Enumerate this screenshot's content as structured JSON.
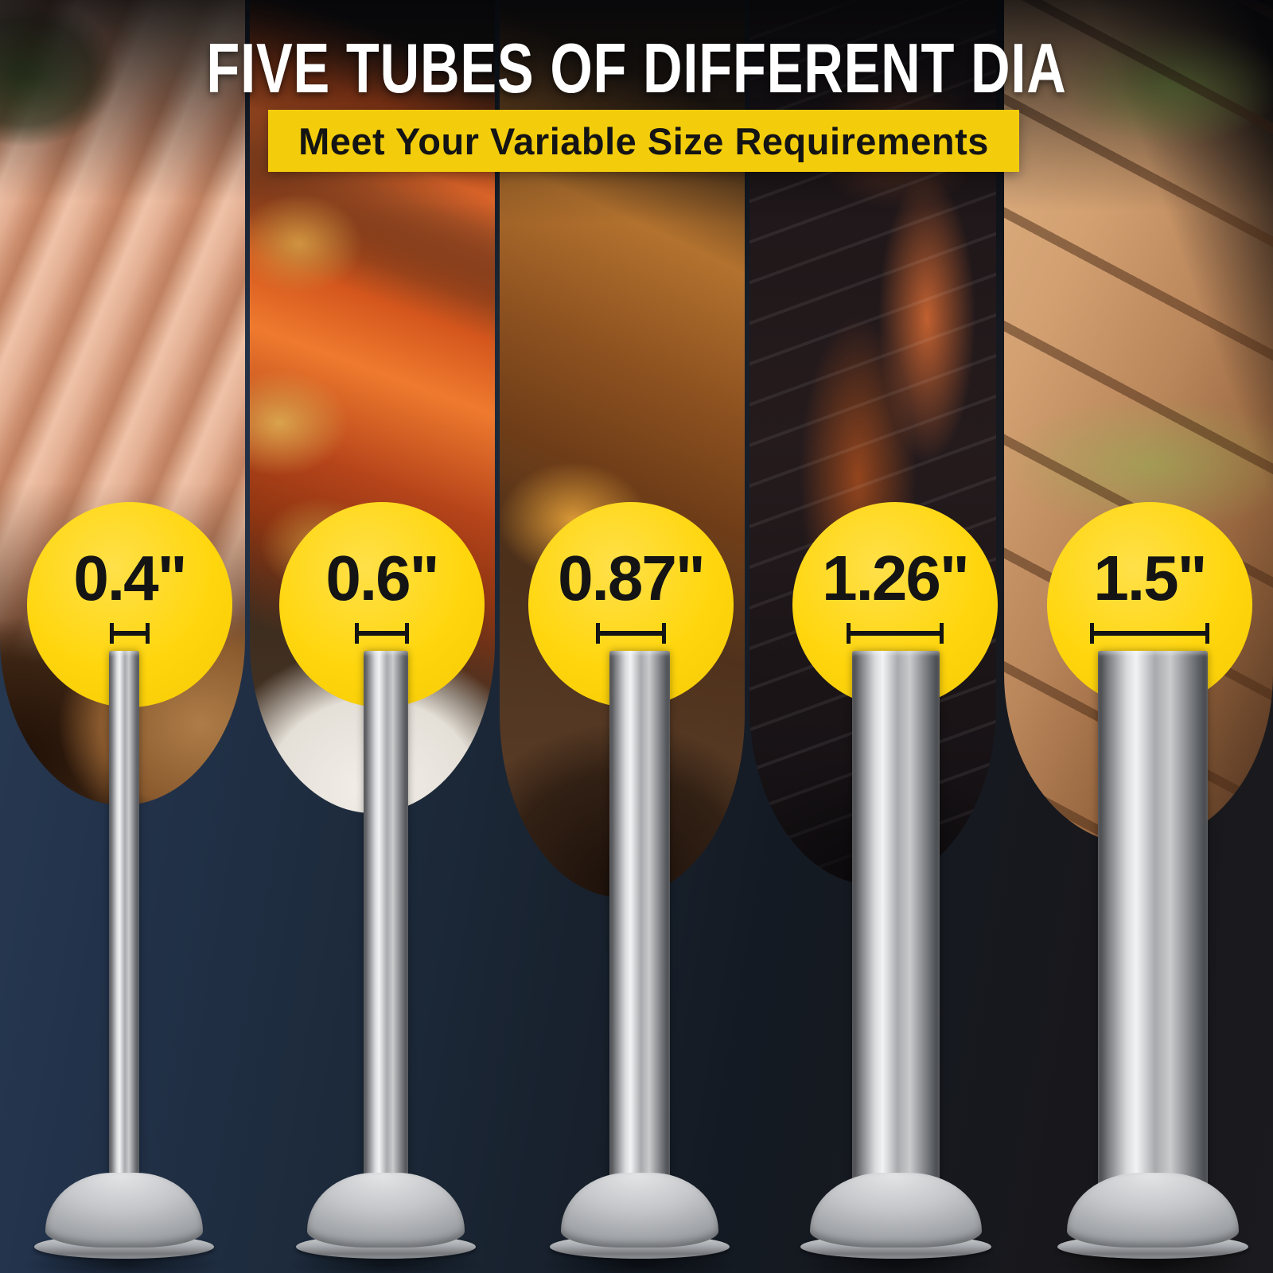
{
  "header": {
    "title": "FIVE TUBES OF DIFFERENT DIA",
    "subtitle": "Meet Your Variable Size Requirements"
  },
  "colors": {
    "accent_yellow": "#F3CD0B",
    "badge_yellow": "#FFD60D",
    "headline_white": "#FFFFFF",
    "label_black": "#141414",
    "background_navy": "#1C2939",
    "background_black": "#18181C",
    "metal_highlight": "#F2F3F5",
    "metal_shadow": "#55585D"
  },
  "tubes": [
    {
      "diameter_label": "0.4\"",
      "measure_icon": "diameter-bracket-icon",
      "photo": "fresh-sausages-photo"
    },
    {
      "diameter_label": "0.6\"",
      "measure_icon": "diameter-bracket-icon",
      "photo": "grilled-sausages-plate-photo"
    },
    {
      "diameter_label": "0.87\"",
      "measure_icon": "diameter-bracket-icon",
      "photo": "bbq-sausages-grill-photo"
    },
    {
      "diameter_label": "1.26\"",
      "measure_icon": "diameter-bracket-icon",
      "photo": "smoked-sausage-pan-photo"
    },
    {
      "diameter_label": "1.5\"",
      "measure_icon": "diameter-bracket-icon",
      "photo": "roasted-sausage-herbs-photo"
    }
  ]
}
